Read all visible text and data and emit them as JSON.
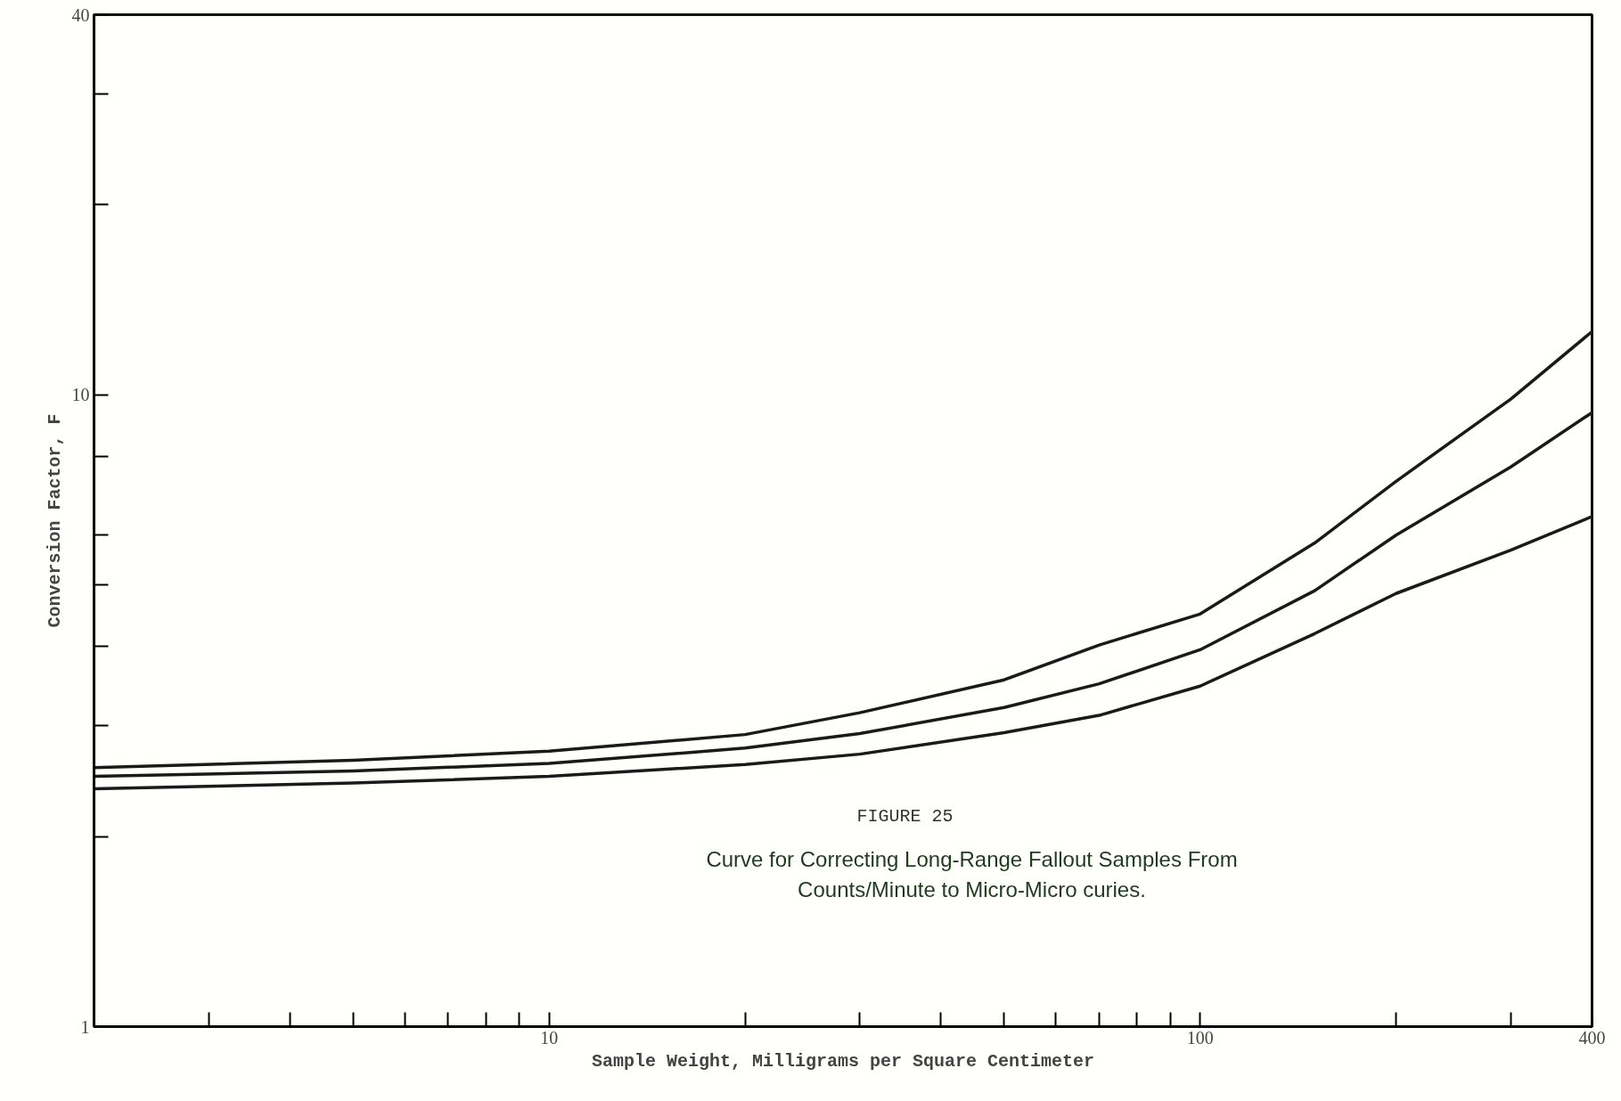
{
  "chart_data": {
    "type": "line",
    "xlabel": "Sample Weight, Milligrams per Square Centimeter",
    "ylabel": "Conversion Factor, F",
    "annotations": [
      "FIGURE 25",
      "Curve for Correcting Long-Range Fallout Samples From Counts/Minute to Micro-Micro curies."
    ],
    "log": "xy",
    "grid": false,
    "marker": "none",
    "line_style": "solid",
    "x": [
      2,
      5,
      10,
      20,
      30,
      50,
      70,
      100,
      150,
      200,
      300,
      400
    ],
    "xlim": [
      2,
      400
    ],
    "ylim": [
      1,
      40
    ],
    "xticks": [
      {
        "value": 3,
        "label": null
      },
      {
        "value": 4,
        "label": null
      },
      {
        "value": 5,
        "label": null
      },
      {
        "value": 6,
        "label": null
      },
      {
        "value": 7,
        "label": null
      },
      {
        "value": 8,
        "label": null
      },
      {
        "value": 9,
        "label": null
      },
      10,
      {
        "value": 20,
        "label": null
      },
      {
        "value": 30,
        "label": null
      },
      {
        "value": 40,
        "label": null
      },
      {
        "value": 50,
        "label": null
      },
      {
        "value": 60,
        "label": null
      },
      {
        "value": 70,
        "label": null
      },
      {
        "value": 80,
        "label": null
      },
      {
        "value": 90,
        "label": null
      },
      100,
      {
        "value": 200,
        "label": null
      },
      {
        "value": 300,
        "label": null
      },
      400
    ],
    "yticks": [
      1,
      {
        "value": 2,
        "label": null
      },
      {
        "value": 3,
        "label": null
      },
      {
        "value": 4,
        "label": null
      },
      {
        "value": 5,
        "label": null
      },
      {
        "value": 6,
        "label": null
      },
      {
        "value": 8,
        "label": null
      },
      10,
      {
        "value": 20,
        "label": null
      },
      {
        "value": 30,
        "label": null
      },
      40
    ],
    "series": [
      {
        "color": "#1a1a1a",
        "values": [
          2.57,
          2.64,
          2.73,
          2.9,
          3.14,
          3.54,
          4.02,
          4.5,
          5.83,
          7.3,
          9.85,
          12.6
        ]
      },
      {
        "color": "#1a1a1a",
        "values": [
          2.49,
          2.54,
          2.61,
          2.76,
          2.91,
          3.2,
          3.49,
          3.95,
          4.9,
          6.0,
          7.69,
          9.38
        ]
      },
      {
        "color": "#1a1a1a",
        "values": [
          2.38,
          2.43,
          2.49,
          2.6,
          2.7,
          2.92,
          3.11,
          3.46,
          4.19,
          4.85,
          5.68,
          6.42
        ]
      }
    ]
  }
}
